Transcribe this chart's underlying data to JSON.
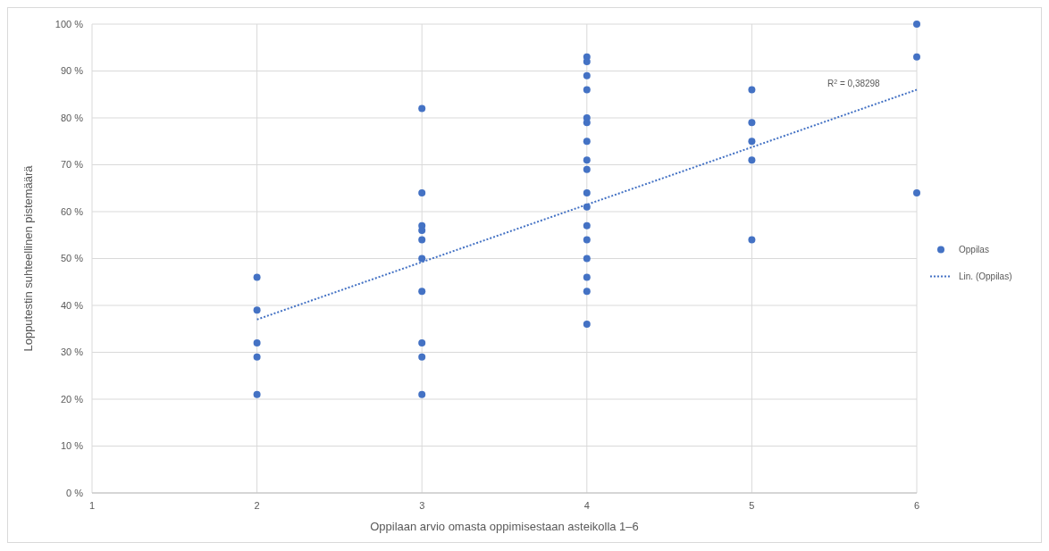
{
  "chart_data": {
    "type": "scatter",
    "xlabel": "Oppilaan arvio omasta oppimisestaan asteikolla 1–6",
    "ylabel": "Lopputestin suhteellinen pistemäärä",
    "xlim": [
      1,
      6
    ],
    "xticks": [
      1,
      2,
      3,
      4,
      5,
      6
    ],
    "ylim": [
      0,
      100
    ],
    "yticks": [
      {
        "value": 0,
        "label": "0 %"
      },
      {
        "value": 10,
        "label": "10 %"
      },
      {
        "value": 20,
        "label": "20 %"
      },
      {
        "value": 30,
        "label": "30 %"
      },
      {
        "value": 40,
        "label": "40 %"
      },
      {
        "value": 50,
        "label": "50 %"
      },
      {
        "value": 60,
        "label": "60 %"
      },
      {
        "value": 70,
        "label": "70 %"
      },
      {
        "value": 80,
        "label": "80 %"
      },
      {
        "value": 90,
        "label": "90 %"
      },
      {
        "value": 100,
        "label": "100 %"
      }
    ],
    "grid": true,
    "legend": "right",
    "marker": "circle",
    "annotations": [
      "R$^{2}$ = 0,38298"
    ],
    "series": [
      {
        "name": "Oppilas",
        "color": "#4472c4",
        "x": [
          2,
          2,
          2,
          2,
          2,
          3,
          3,
          3,
          3,
          3,
          3,
          3,
          3,
          3,
          3,
          4,
          4,
          4,
          4,
          4,
          4,
          4,
          4,
          4,
          4,
          4,
          4,
          4,
          4,
          4,
          4,
          4,
          5,
          5,
          5,
          5,
          5,
          6,
          6,
          6
        ],
        "values": [
          46,
          39,
          32,
          29,
          21,
          82,
          64,
          57,
          56,
          54,
          50,
          43,
          32,
          29,
          21,
          93,
          92,
          89,
          86,
          80,
          79,
          75,
          71,
          69,
          64,
          61,
          57,
          54,
          50,
          46,
          43,
          36,
          86,
          79,
          75,
          71,
          54,
          100,
          93,
          64
        ]
      },
      {
        "name": "Lin. (Oppilas)",
        "type": "line",
        "line_style": "dotted",
        "marker": "none",
        "color": "#4472c4",
        "x": [
          2,
          6
        ],
        "values": [
          37,
          86
        ]
      }
    ]
  }
}
